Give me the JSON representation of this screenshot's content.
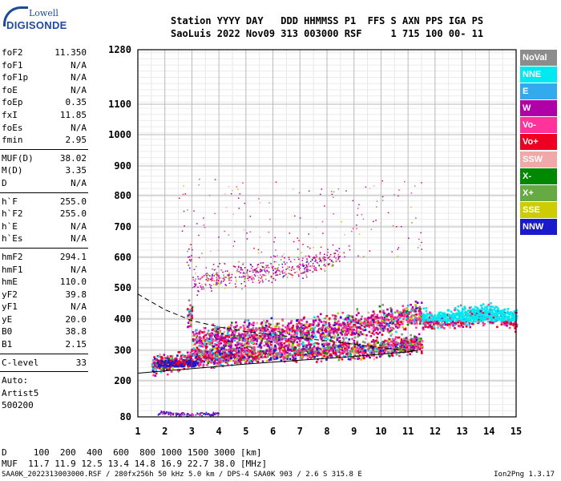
{
  "logo": {
    "line1": "Lowell",
    "line2": "DIGISONDE"
  },
  "header": {
    "line1": "Station YYYY DAY   DDD HHMMSS P1  FFS S AXN PPS IGA PS",
    "line2": "SaoLuis 2022 Nov09 313 003000 RSF     1 715 100 00- 11"
  },
  "parameters": {
    "group1": [
      {
        "name": "foF2",
        "value": "11.350"
      },
      {
        "name": "foF1",
        "value": "N/A"
      },
      {
        "name": "foF1p",
        "value": "N/A"
      },
      {
        "name": "foE",
        "value": "N/A"
      },
      {
        "name": "foEp",
        "value": "0.35"
      },
      {
        "name": "fxI",
        "value": "11.85"
      },
      {
        "name": "foEs",
        "value": "N/A"
      },
      {
        "name": "fmin",
        "value": "2.95"
      }
    ],
    "group2": [
      {
        "name": "MUF(D)",
        "value": "38.02"
      },
      {
        "name": "M(D)",
        "value": "3.35"
      },
      {
        "name": "D",
        "value": "N/A"
      }
    ],
    "group3": [
      {
        "name": "h`F",
        "value": "255.0"
      },
      {
        "name": "h`F2",
        "value": "255.0"
      },
      {
        "name": "h`E",
        "value": "N/A"
      },
      {
        "name": "h`Es",
        "value": "N/A"
      }
    ],
    "group4": [
      {
        "name": "hmF2",
        "value": "294.1"
      },
      {
        "name": "hmF1",
        "value": "N/A"
      },
      {
        "name": "hmE",
        "value": "110.0"
      },
      {
        "name": "yF2",
        "value": "39.8"
      },
      {
        "name": "yF1",
        "value": "N/A"
      },
      {
        "name": "yE",
        "value": "20.0"
      },
      {
        "name": "B0",
        "value": "38.8"
      },
      {
        "name": "B1",
        "value": "2.15"
      }
    ],
    "clevel": {
      "name": "C-level",
      "value": "33"
    },
    "auto": [
      "Auto:",
      "Artist5",
      "500200"
    ]
  },
  "legend": [
    {
      "label": "NoVal",
      "color": "#8c8c8c"
    },
    {
      "label": "NNE",
      "color": "#00e8f0"
    },
    {
      "label": "E",
      "color": "#33aaee"
    },
    {
      "label": "W",
      "color": "#b000a8"
    },
    {
      "label": "Vo-",
      "color": "#ff3399"
    },
    {
      "label": "Vo+",
      "color": "#ee0022"
    },
    {
      "label": "SSW",
      "color": "#f0a8a8"
    },
    {
      "label": "X-",
      "color": "#008800"
    },
    {
      "label": "X+",
      "color": "#66aa44"
    },
    {
      "label": "SSE",
      "color": "#cccc00"
    },
    {
      "label": "NNW",
      "color": "#1a1acc"
    }
  ],
  "bottom": {
    "d_row": "D     100  200  400  600  800 1000 1500 3000 [km]",
    "muf_row": "MUF  11.7 11.9 12.5 13.4 14.8 16.9 22.7 38.0 [MHz]"
  },
  "footer": "SAA0K_2022313003000.RSF / 280fx256h 50 kHz 5.0 km / DPS-4 SAA0K 903 / 2.6 S 315.8 E",
  "version": "Ion2Png 1.3.17",
  "chart_data": {
    "type": "scatter",
    "title": "",
    "xlabel": "",
    "ylabel": "",
    "xlim": [
      1,
      15
    ],
    "ylim": [
      80,
      1280
    ],
    "x_ticks": [
      1,
      2,
      3,
      4,
      5,
      6,
      7,
      8,
      9,
      10,
      11,
      12,
      13,
      14,
      15
    ],
    "y_ticks": [
      80,
      200,
      300,
      400,
      500,
      600,
      700,
      800,
      900,
      1000,
      1100,
      1280
    ],
    "grid": true,
    "clusters": [
      {
        "name": "F-trace main",
        "x_range": [
          1.5,
          11.5
        ],
        "y_range": [
          240,
          340
        ],
        "approx_points": [
          [
            1.5,
            250
          ],
          [
            3,
            275
          ],
          [
            5,
            290
          ],
          [
            7,
            300
          ],
          [
            9,
            305
          ],
          [
            11,
            320
          ]
        ]
      },
      {
        "name": "F-trace upper",
        "x_range": [
          2.8,
          11.5
        ],
        "y_range": [
          300,
          440
        ],
        "approx_points": [
          [
            3,
            330
          ],
          [
            5,
            350
          ],
          [
            7,
            360
          ],
          [
            9,
            380
          ],
          [
            10.5,
            400
          ],
          [
            11.2,
            420
          ]
        ]
      },
      {
        "name": "second hop",
        "x_range": [
          2.8,
          8.5
        ],
        "y_range": [
          500,
          600
        ],
        "approx_points": [
          [
            3,
            520
          ],
          [
            4,
            540
          ],
          [
            6,
            560
          ],
          [
            7.2,
            570
          ],
          [
            8.3,
            600
          ]
        ]
      },
      {
        "name": "E-region trace",
        "x_range": [
          1.7,
          4.0
        ],
        "y_range": [
          85,
          110
        ],
        "approx_points": [
          [
            1.8,
            95
          ],
          [
            2.5,
            90
          ],
          [
            3.5,
            92
          ]
        ]
      },
      {
        "name": "high freq band",
        "x_range": [
          11.5,
          15
        ],
        "y_range": [
          360,
          460
        ],
        "approx_points": [
          [
            12,
            400
          ],
          [
            13,
            410
          ],
          [
            14,
            420
          ],
          [
            14.8,
            400
          ]
        ]
      }
    ],
    "profile_curves": [
      {
        "style": "solid",
        "points": [
          [
            1,
            225
          ],
          [
            5,
            255
          ],
          [
            9,
            280
          ],
          [
            11,
            295
          ],
          [
            11.35,
            300
          ]
        ]
      },
      {
        "style": "dashed",
        "points": [
          [
            1,
            480
          ],
          [
            2,
            430
          ],
          [
            3,
            395
          ],
          [
            4,
            375
          ],
          [
            5,
            360
          ],
          [
            6,
            350
          ],
          [
            7,
            340
          ],
          [
            8,
            330
          ],
          [
            9,
            320
          ],
          [
            10,
            308
          ],
          [
            11,
            300
          ],
          [
            11.35,
            300
          ]
        ]
      }
    ]
  }
}
